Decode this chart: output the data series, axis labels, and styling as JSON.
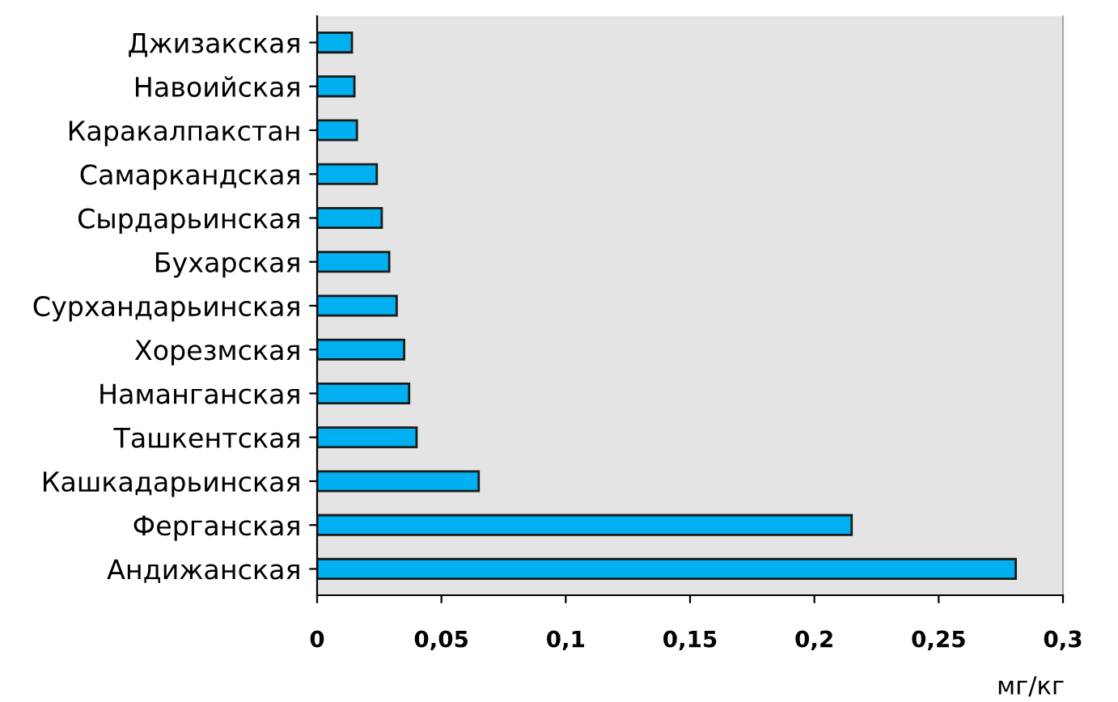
{
  "chart_data": {
    "type": "bar",
    "orientation": "horizontal",
    "xlabel": "мг/кг",
    "categories": [
      "Джизакская",
      "Навоийская",
      "Каракалпакстан",
      "Самаркандская",
      "Сырдарьинская",
      "Бухарская",
      "Сурхандарьинская",
      "Хорезмская",
      "Наманганская",
      "Ташкентская",
      "Кашкадарьинская",
      "Ферганская",
      "Андижанская"
    ],
    "values": [
      0.014,
      0.015,
      0.016,
      0.024,
      0.026,
      0.029,
      0.032,
      0.035,
      0.037,
      0.04,
      0.065,
      0.215,
      0.281
    ],
    "color": "#00b0f0",
    "xlim": [
      0,
      0.3
    ],
    "xticks": [
      0,
      {
        "value": 0.05,
        "label": "0,05"
      },
      {
        "value": 0.1,
        "label": "0,1"
      },
      {
        "value": 0.15,
        "label": "0,15"
      },
      {
        "value": 0.2,
        "label": "0,2"
      },
      {
        "value": 0.25,
        "label": "0,25"
      },
      {
        "value": 0.3,
        "label": "0,3"
      }
    ],
    "grid": false,
    "legend": false
  }
}
